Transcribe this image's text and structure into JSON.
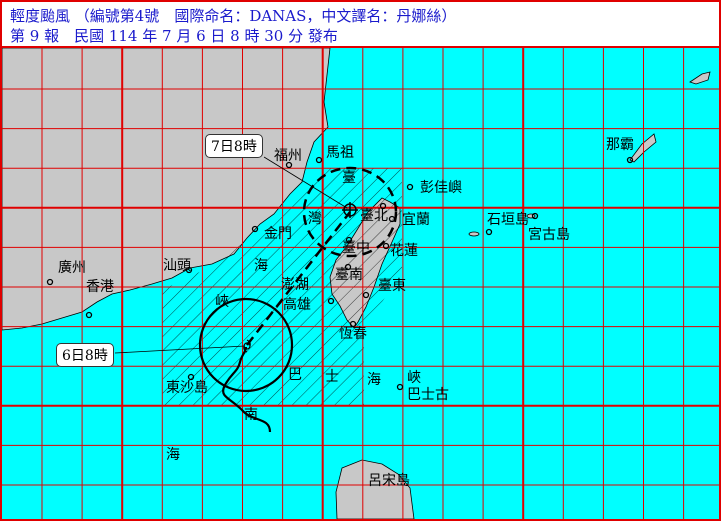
{
  "header": {
    "line1": "輕度颱風 （編號第4號　國際命名：DANAS，中文譯名：丹娜絲）",
    "line2": "第 9 報　民國 114 年 7 月 6 日 8 時 30 分 發布"
  },
  "callouts": {
    "current": "6日8時",
    "forecast": "7日8時"
  },
  "places": {
    "fuzhou": "福州",
    "mazu": "馬祖",
    "pengjia": "彭佳嶼",
    "taipei": "臺北",
    "yilan": "宜蘭",
    "kinmen": "金門",
    "taichung": "臺中",
    "hualien": "花蓮",
    "tainan": "臺南",
    "taitung": "臺東",
    "penghu": "澎湖",
    "kaohsiung": "高雄",
    "hengchun": "恆春",
    "shantou": "汕頭",
    "guangzhou": "廣州",
    "hongkong": "香港",
    "dongsha": "東沙島",
    "basco": "巴士古",
    "naha": "那霸",
    "ishigaki": "石垣島",
    "miyako": "宮古島",
    "luzon": "呂宋島"
  },
  "sea_labels": {
    "strait": [
      "臺",
      "灣",
      "海",
      "峽"
    ],
    "bashi": [
      "巴",
      "士",
      "海",
      "峽"
    ],
    "scs": [
      "南",
      "海"
    ]
  },
  "colors": {
    "sea": "#00ffff",
    "land": "#c8c8c8",
    "grid": "#e00000",
    "header_text": "#1a1acc"
  }
}
